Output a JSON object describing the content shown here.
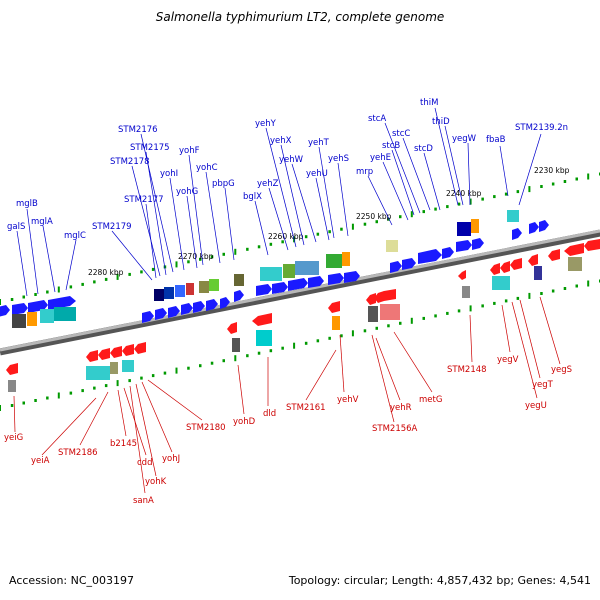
{
  "header": {
    "title": "Salmonella typhimurium LT2, complete genome"
  },
  "footer": {
    "accession": "Accession: NC_003197",
    "topology": "Topology: circular; Length: 4,857,432 bp; Genes: 4,541"
  },
  "colors": {
    "forward_strand": "#1a1aff",
    "reverse_strand": "#ff1a1a",
    "forward_label": "#0000cc",
    "reverse_label": "#cc0000",
    "genome_line": "#808080",
    "tick": "#009900"
  },
  "scale_labels": [
    "2230 kbp",
    "2240 kbp",
    "2250 kbp",
    "2260 kbp",
    "2270 kbp",
    "2280 kbp"
  ],
  "forward_genes": [
    "STM2139.2n",
    "thiM",
    "thiD",
    "yegW",
    "fbaB",
    "stcA",
    "stcC",
    "stcB",
    "stcD",
    "yehE",
    "mrp",
    "yehT",
    "yehS",
    "yehU",
    "yehW",
    "yehX",
    "yehY",
    "yehZ",
    "bglX",
    "pbpG",
    "yohC",
    "yohF",
    "yohG",
    "yohI",
    "STM2176",
    "STM2175",
    "STM2178",
    "STM2177",
    "STM2179",
    "mglB",
    "mglA",
    "galS",
    "mglC"
  ],
  "reverse_genes": [
    "yeiG",
    "yeiA",
    "STM2186",
    "b2145",
    "cdd",
    "sanA",
    "yohK",
    "yohJ",
    "STM2180",
    "yohD",
    "dld",
    "STM2161",
    "yehV",
    "yehR",
    "STM2156A",
    "metG",
    "STM2148",
    "yegV",
    "yegT",
    "yegU",
    "yegS"
  ]
}
